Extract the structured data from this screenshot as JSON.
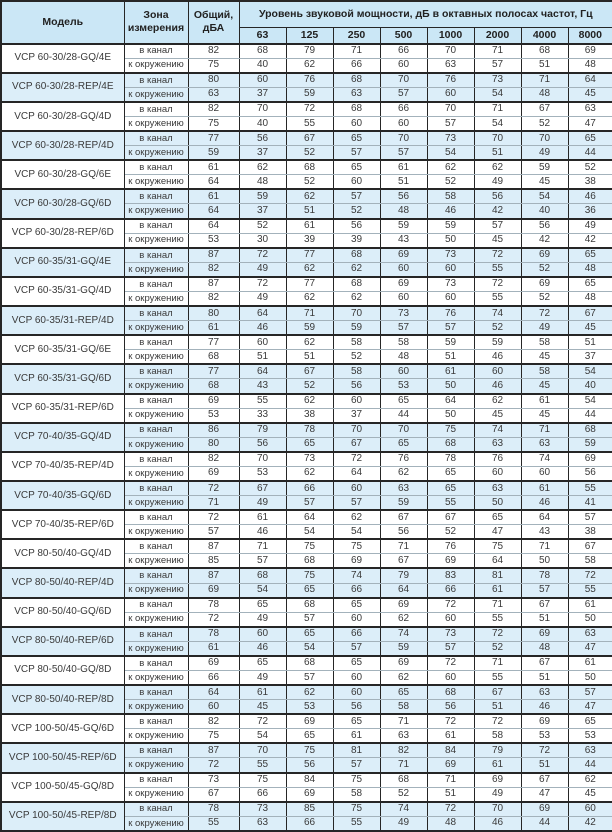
{
  "colors": {
    "header_bg": "#cbe7f6",
    "shade_bg": "#dceef9",
    "border_dark": "#262626",
    "border_light": "#a3b2bb",
    "text": "#3a3a3a"
  },
  "header": {
    "model": "Модель",
    "zone": "Зона измерения",
    "total": "Общий, дБА",
    "spl": "Уровень звуковой мощности, дБ в октавных полосах частот, Гц",
    "frequencies": [
      "63",
      "125",
      "250",
      "500",
      "1000",
      "2000",
      "4000",
      "8000"
    ]
  },
  "zone_labels": {
    "duct": "в канал",
    "ambient": "к окружению"
  },
  "models": [
    {
      "name": "VCP 60-30/28-GQ/4E",
      "shaded": false,
      "duct": {
        "total": 82,
        "levels": [
          68,
          79,
          71,
          66,
          70,
          71,
          68,
          69
        ]
      },
      "ambient": {
        "total": 75,
        "levels": [
          40,
          62,
          66,
          60,
          63,
          57,
          51,
          48
        ]
      }
    },
    {
      "name": "VCP 60-30/28-REP/4E",
      "shaded": true,
      "duct": {
        "total": 80,
        "levels": [
          60,
          76,
          68,
          70,
          76,
          73,
          71,
          64
        ]
      },
      "ambient": {
        "total": 63,
        "levels": [
          37,
          59,
          63,
          57,
          60,
          54,
          48,
          45
        ]
      }
    },
    {
      "name": "VCP 60-30/28-GQ/4D",
      "shaded": false,
      "duct": {
        "total": 82,
        "levels": [
          70,
          72,
          68,
          66,
          70,
          71,
          67,
          63
        ]
      },
      "ambient": {
        "total": 75,
        "levels": [
          40,
          55,
          60,
          60,
          57,
          54,
          52,
          47
        ]
      }
    },
    {
      "name": "VCP 60-30/28-REP/4D",
      "shaded": true,
      "duct": {
        "total": 77,
        "levels": [
          56,
          67,
          65,
          70,
          73,
          70,
          70,
          65
        ]
      },
      "ambient": {
        "total": 59,
        "levels": [
          37,
          52,
          57,
          57,
          54,
          51,
          49,
          44
        ]
      }
    },
    {
      "name": "VCP 60-30/28-GQ/6E",
      "shaded": false,
      "duct": {
        "total": 61,
        "levels": [
          62,
          68,
          65,
          61,
          62,
          62,
          59,
          52
        ]
      },
      "ambient": {
        "total": 64,
        "levels": [
          48,
          52,
          60,
          51,
          52,
          49,
          45,
          38
        ]
      }
    },
    {
      "name": "VCP 60-30/28-GQ/6D",
      "shaded": true,
      "duct": {
        "total": 61,
        "levels": [
          59,
          62,
          57,
          56,
          58,
          56,
          54,
          46
        ]
      },
      "ambient": {
        "total": 64,
        "levels": [
          37,
          51,
          52,
          48,
          46,
          42,
          40,
          36
        ]
      }
    },
    {
      "name": "VCP 60-30/28-REP/6D",
      "shaded": false,
      "duct": {
        "total": 64,
        "levels": [
          52,
          61,
          56,
          59,
          59,
          57,
          56,
          49
        ]
      },
      "ambient": {
        "total": 53,
        "levels": [
          30,
          39,
          39,
          43,
          50,
          45,
          42,
          42
        ]
      }
    },
    {
      "name": "VCP 60-35/31-GQ/4E",
      "shaded": true,
      "duct": {
        "total": 87,
        "levels": [
          72,
          77,
          68,
          69,
          73,
          72,
          69,
          65
        ]
      },
      "ambient": {
        "total": 82,
        "levels": [
          49,
          62,
          62,
          60,
          60,
          55,
          52,
          48
        ]
      }
    },
    {
      "name": "VCP 60-35/31-GQ/4D",
      "shaded": false,
      "duct": {
        "total": 87,
        "levels": [
          72,
          77,
          68,
          69,
          73,
          72,
          69,
          65
        ]
      },
      "ambient": {
        "total": 82,
        "levels": [
          49,
          62,
          62,
          60,
          60,
          55,
          52,
          48
        ]
      }
    },
    {
      "name": "VCP 60-35/31-REP/4D",
      "shaded": true,
      "duct": {
        "total": 80,
        "levels": [
          64,
          71,
          70,
          73,
          76,
          74,
          72,
          67
        ]
      },
      "ambient": {
        "total": 61,
        "levels": [
          46,
          59,
          59,
          57,
          57,
          52,
          49,
          45
        ]
      }
    },
    {
      "name": "VCP 60-35/31-GQ/6E",
      "shaded": false,
      "duct": {
        "total": 77,
        "levels": [
          60,
          62,
          58,
          58,
          59,
          59,
          58,
          51
        ]
      },
      "ambient": {
        "total": 68,
        "levels": [
          51,
          51,
          52,
          48,
          51,
          46,
          45,
          37
        ]
      }
    },
    {
      "name": "VCP 60-35/31-GQ/6D",
      "shaded": true,
      "duct": {
        "total": 77,
        "levels": [
          64,
          67,
          58,
          60,
          61,
          60,
          58,
          54
        ]
      },
      "ambient": {
        "total": 68,
        "levels": [
          43,
          52,
          56,
          53,
          50,
          46,
          45,
          40
        ]
      }
    },
    {
      "name": "VCP 60-35/31-REP/6D",
      "shaded": false,
      "duct": {
        "total": 69,
        "levels": [
          55,
          62,
          60,
          65,
          64,
          62,
          61,
          54
        ]
      },
      "ambient": {
        "total": 53,
        "levels": [
          33,
          38,
          37,
          44,
          50,
          45,
          45,
          44
        ]
      }
    },
    {
      "name": "VCP 70-40/35-GQ/4D",
      "shaded": true,
      "duct": {
        "total": 86,
        "levels": [
          79,
          78,
          70,
          70,
          75,
          74,
          71,
          68
        ]
      },
      "ambient": {
        "total": 80,
        "levels": [
          56,
          65,
          67,
          65,
          68,
          63,
          63,
          59
        ]
      }
    },
    {
      "name": "VCP 70-40/35-REP/4D",
      "shaded": false,
      "duct": {
        "total": 82,
        "levels": [
          70,
          73,
          72,
          76,
          78,
          76,
          74,
          69
        ]
      },
      "ambient": {
        "total": 69,
        "levels": [
          53,
          62,
          64,
          62,
          65,
          60,
          60,
          56
        ]
      }
    },
    {
      "name": "VCP 70-40/35-GQ/6D",
      "shaded": true,
      "duct": {
        "total": 72,
        "levels": [
          67,
          66,
          60,
          63,
          65,
          63,
          61,
          55
        ]
      },
      "ambient": {
        "total": 71,
        "levels": [
          49,
          57,
          57,
          59,
          55,
          50,
          46,
          41
        ]
      }
    },
    {
      "name": "VCP 70-40/35-REP/6D",
      "shaded": false,
      "duct": {
        "total": 72,
        "levels": [
          61,
          64,
          62,
          67,
          67,
          65,
          64,
          57
        ]
      },
      "ambient": {
        "total": 57,
        "levels": [
          46,
          54,
          54,
          56,
          52,
          47,
          43,
          38
        ]
      }
    },
    {
      "name": "VCP 80-50/40-GQ/4D",
      "shaded": false,
      "duct": {
        "total": 87,
        "levels": [
          71,
          75,
          75,
          71,
          76,
          75,
          71,
          67
        ]
      },
      "ambient": {
        "total": 85,
        "levels": [
          57,
          68,
          69,
          67,
          69,
          64,
          50,
          58
        ]
      }
    },
    {
      "name": "VCP 80-50/40-REP/4D",
      "shaded": true,
      "duct": {
        "total": 87,
        "levels": [
          68,
          75,
          74,
          79,
          83,
          81,
          78,
          72
        ]
      },
      "ambient": {
        "total": 69,
        "levels": [
          54,
          65,
          66,
          64,
          66,
          61,
          57,
          55
        ]
      }
    },
    {
      "name": "VCP 80-50/40-GQ/6D",
      "shaded": false,
      "duct": {
        "total": 78,
        "levels": [
          65,
          68,
          65,
          69,
          72,
          71,
          67,
          61
        ]
      },
      "ambient": {
        "total": 72,
        "levels": [
          49,
          57,
          60,
          62,
          60,
          55,
          51,
          50
        ]
      }
    },
    {
      "name": "VCP 80-50/40-REP/6D",
      "shaded": true,
      "duct": {
        "total": 78,
        "levels": [
          60,
          65,
          66,
          74,
          73,
          72,
          69,
          63
        ]
      },
      "ambient": {
        "total": 61,
        "levels": [
          46,
          54,
          57,
          59,
          57,
          52,
          48,
          47
        ]
      }
    },
    {
      "name": "VCP 80-50/40-GQ/8D",
      "shaded": false,
      "duct": {
        "total": 69,
        "levels": [
          65,
          68,
          65,
          69,
          72,
          71,
          67,
          61
        ]
      },
      "ambient": {
        "total": 66,
        "levels": [
          49,
          57,
          60,
          62,
          60,
          55,
          51,
          50
        ]
      }
    },
    {
      "name": "VCP 80-50/40-REP/8D",
      "shaded": true,
      "duct": {
        "total": 64,
        "levels": [
          61,
          62,
          60,
          65,
          68,
          67,
          63,
          57
        ]
      },
      "ambient": {
        "total": 60,
        "levels": [
          45,
          53,
          56,
          58,
          56,
          51,
          46,
          47
        ]
      }
    },
    {
      "name": "VCP 100-50/45-GQ/6D",
      "shaded": false,
      "duct": {
        "total": 82,
        "levels": [
          72,
          69,
          65,
          71,
          72,
          72,
          69,
          65
        ]
      },
      "ambient": {
        "total": 75,
        "levels": [
          54,
          65,
          61,
          63,
          61,
          58,
          53,
          53
        ]
      }
    },
    {
      "name": "VCP 100-50/45-REP/6D",
      "shaded": true,
      "duct": {
        "total": 87,
        "levels": [
          70,
          75,
          81,
          82,
          84,
          79,
          72,
          63
        ]
      },
      "ambient": {
        "total": 72,
        "levels": [
          55,
          56,
          57,
          71,
          69,
          61,
          51,
          44
        ]
      }
    },
    {
      "name": "VCP 100-50/45-GQ/8D",
      "shaded": false,
      "duct": {
        "total": 73,
        "levels": [
          75,
          84,
          75,
          68,
          71,
          69,
          67,
          62
        ]
      },
      "ambient": {
        "total": 67,
        "levels": [
          66,
          69,
          58,
          52,
          51,
          49,
          47,
          45
        ]
      }
    },
    {
      "name": "VCP 100-50/45-REP/8D",
      "shaded": true,
      "duct": {
        "total": 78,
        "levels": [
          73,
          85,
          75,
          74,
          72,
          70,
          69,
          60
        ]
      },
      "ambient": {
        "total": 55,
        "levels": [
          63,
          66,
          55,
          49,
          48,
          46,
          44,
          42
        ]
      }
    }
  ]
}
